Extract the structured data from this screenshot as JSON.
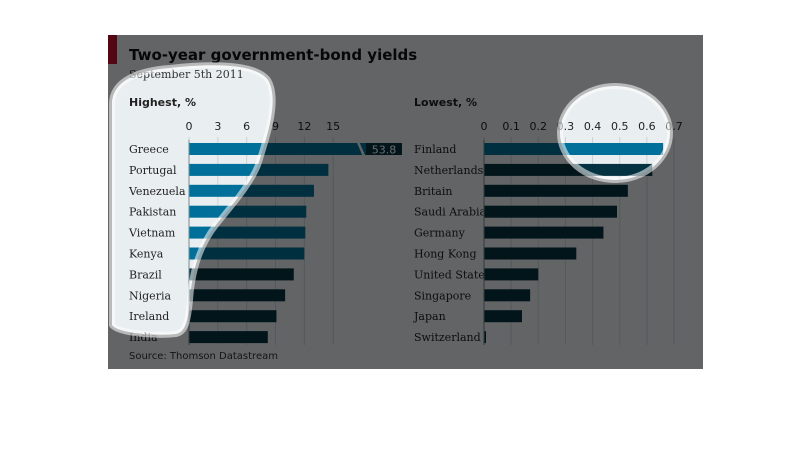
{
  "header": {
    "title": "Two-year government-bond yields",
    "subtitle": "September 5th 2011",
    "source": "Source: Thomson Datastream"
  },
  "colors": {
    "bar_highlight": "#00709a",
    "bar_dark": "#053240",
    "accent": "#c8102e",
    "dim_overlay": "rgba(0,0,0,0.55)"
  },
  "chart_data": [
    {
      "type": "bar",
      "orientation": "horizontal",
      "title": "Highest, %",
      "xlim": [
        0,
        18
      ],
      "ticks": [
        "0",
        "3",
        "6",
        "9",
        "12",
        "15"
      ],
      "tick_values": [
        0,
        3,
        6,
        9,
        12,
        15
      ],
      "categories": [
        "Greece",
        "Portugal",
        "Venezuela",
        "Pakistan",
        "Vietnam",
        "Kenya",
        "Brazil",
        "Nigeria",
        "Ireland",
        "India"
      ],
      "values": [
        53.8,
        14.5,
        13.0,
        12.2,
        12.1,
        12.0,
        10.9,
        10.0,
        9.1,
        8.2
      ],
      "data_labels": [
        "53.8",
        "",
        "",
        "",
        "",
        "",
        "",
        "",
        "",
        ""
      ],
      "broken_bar_index": 0
    },
    {
      "type": "bar",
      "orientation": "horizontal",
      "title": "Lowest, %",
      "xlim": [
        0,
        0.7
      ],
      "ticks": [
        "0",
        "0.1",
        "0.2",
        "0.3",
        "0.4",
        "0.5",
        "0.6",
        "0.7"
      ],
      "tick_values": [
        0,
        0.1,
        0.2,
        0.3,
        0.4,
        0.5,
        0.6,
        0.7
      ],
      "categories": [
        "Finland",
        "Netherlands",
        "Britain",
        "Saudi Arabia",
        "Germany",
        "Hong Kong",
        "United States",
        "Singapore",
        "Japan",
        "Switzerland"
      ],
      "values": [
        0.66,
        0.62,
        0.53,
        0.49,
        0.44,
        0.34,
        0.2,
        0.17,
        0.14,
        0.005
      ]
    }
  ]
}
